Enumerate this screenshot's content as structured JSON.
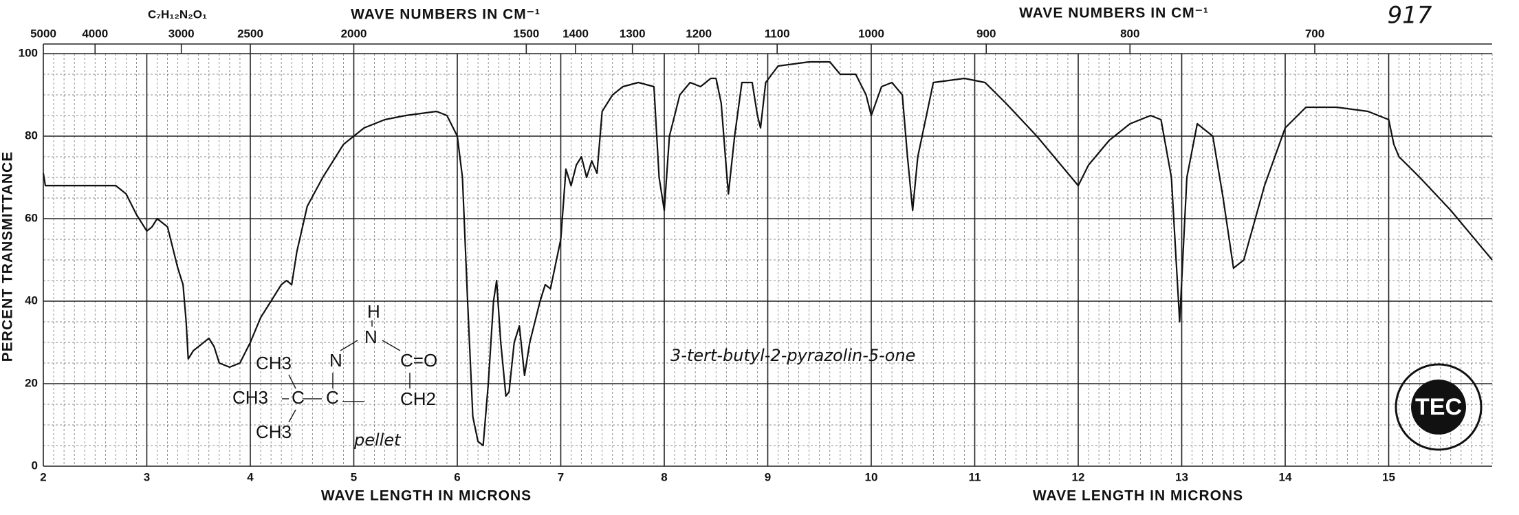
{
  "chart_data": {
    "type": "line",
    "formula": "C₇H₁₂N₂O₁",
    "top_axis_label": "WAVE NUMBERS IN CM⁻¹",
    "top_axis_label_right": "WAVE NUMBERS IN CM⁻¹",
    "x_axis_label": "WAVE LENGTH IN MICRONS",
    "x_axis_label_right": "WAVE LENGTH IN MICRONS",
    "y_axis_label": "PERCENT TRANSMITTANCE",
    "sheet_number": "917",
    "annotation": "3-tert-butyl-2-pyrazolin-5-one",
    "sample_note": "pellet",
    "structure": {
      "ch3_top": "CH3",
      "ch3_mid": "CH3",
      "ch3_bottom": "CH3",
      "c1": "C",
      "c2": "C",
      "n1": "N",
      "n2": "N",
      "h": "H",
      "co": "C=O",
      "ch2": "CH2"
    },
    "logo_text": "TEC",
    "color": "#111111",
    "grid": true,
    "xlim": [
      2,
      16
    ],
    "ylim": [
      0,
      100
    ],
    "xticks": [
      2,
      3,
      4,
      5,
      6,
      7,
      8,
      9,
      10,
      11,
      12,
      13,
      14,
      15
    ],
    "yticks": [
      0,
      20,
      40,
      60,
      80,
      100
    ],
    "x2ticks": [
      5000,
      4000,
      3000,
      2500,
      2000,
      1500,
      1400,
      1300,
      1200,
      1100,
      1000,
      900,
      800,
      700
    ],
    "x": [
      2.0,
      2.02,
      2.3,
      2.5,
      2.7,
      2.8,
      2.9,
      3.0,
      3.05,
      3.1,
      3.2,
      3.25,
      3.3,
      3.35,
      3.38,
      3.4,
      3.45,
      3.5,
      3.6,
      3.65,
      3.7,
      3.8,
      3.9,
      4.0,
      4.1,
      4.2,
      4.3,
      4.35,
      4.4,
      4.45,
      4.55,
      4.7,
      4.9,
      5.1,
      5.3,
      5.5,
      5.8,
      5.9,
      6.0,
      6.05,
      6.1,
      6.15,
      6.2,
      6.25,
      6.3,
      6.35,
      6.38,
      6.42,
      6.47,
      6.5,
      6.55,
      6.6,
      6.65,
      6.7,
      6.8,
      6.85,
      6.9,
      7.0,
      7.05,
      7.1,
      7.15,
      7.2,
      7.25,
      7.3,
      7.35,
      7.4,
      7.5,
      7.6,
      7.75,
      7.9,
      7.95,
      8.0,
      8.05,
      8.15,
      8.25,
      8.35,
      8.45,
      8.5,
      8.55,
      8.6,
      8.62,
      8.68,
      8.75,
      8.85,
      8.9,
      8.93,
      8.98,
      9.1,
      9.4,
      9.6,
      9.7,
      9.85,
      9.95,
      10.0,
      10.1,
      10.2,
      10.3,
      10.35,
      10.4,
      10.45,
      10.6,
      10.9,
      11.1,
      11.3,
      11.6,
      11.8,
      12.0,
      12.1,
      12.3,
      12.5,
      12.7,
      12.8,
      12.9,
      12.98,
      13.05,
      13.15,
      13.3,
      13.4,
      13.5,
      13.6,
      13.8,
      14.0,
      14.2,
      14.5,
      14.8,
      15.0,
      15.05,
      15.1,
      15.3,
      15.6,
      16.0
    ],
    "values": [
      71,
      68,
      68,
      68,
      68,
      66,
      61,
      57,
      58,
      60,
      58,
      53,
      48,
      44,
      35,
      26,
      28,
      29,
      31,
      29,
      25,
      24,
      25,
      30,
      36,
      40,
      44,
      45,
      44,
      52,
      63,
      70,
      78,
      82,
      84,
      85,
      86,
      85,
      80,
      70,
      40,
      12,
      6,
      5,
      20,
      40,
      45,
      30,
      17,
      18,
      30,
      34,
      22,
      30,
      40,
      44,
      43,
      55,
      72,
      68,
      73,
      75,
      70,
      74,
      71,
      86,
      90,
      92,
      93,
      92,
      70,
      62,
      80,
      90,
      93,
      92,
      94,
      94,
      88,
      72,
      66,
      80,
      93,
      93,
      85,
      82,
      93,
      97,
      98,
      98,
      95,
      95,
      90,
      85,
      92,
      93,
      90,
      75,
      62,
      75,
      93,
      94,
      93,
      88,
      80,
      74,
      68,
      73,
      79,
      83,
      85,
      84,
      70,
      35,
      70,
      83,
      80,
      65,
      48,
      50,
      68,
      82,
      87,
      87,
      86,
      84,
      78,
      75,
      70,
      62,
      50
    ]
  }
}
